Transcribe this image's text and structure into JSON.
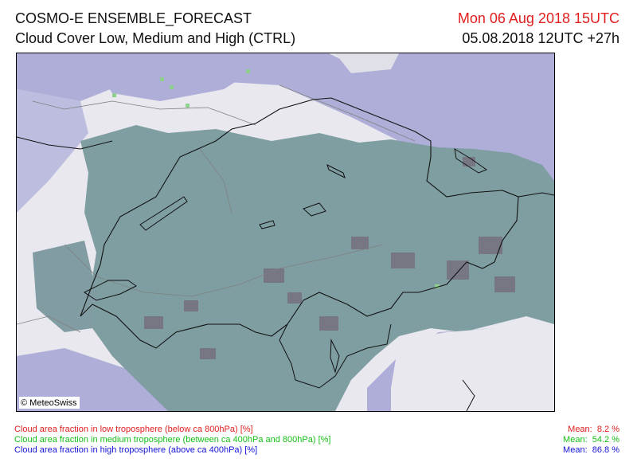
{
  "header": {
    "title": "COSMO-E ENSEMBLE_FORECAST",
    "subtitle": "Cloud Cover Low, Medium and High (CTRL)",
    "valid_time": "Mon 06 Aug 2018 15UTC",
    "init_time": "05.08.2018 12UTC +27h"
  },
  "map": {
    "copyright": "© MeteoSwiss",
    "colors": {
      "background": "#e8e8ee",
      "high_cloud": "#aeaed8",
      "dense_cloud": "#7f9ea2",
      "dark_patches": "#767782",
      "medium_cloud_specks": "#8fd08f",
      "borders": "#111111",
      "rivers": "#808080"
    }
  },
  "legend": [
    {
      "label": "Cloud area fraction in low troposphere (below ca 800hPa) [%]",
      "mean_label": "Mean:",
      "mean": "8.2 %",
      "color": "#e02020"
    },
    {
      "label": "Cloud area fraction in medium troposphere (between ca 400hPa and 800hPa) [%]",
      "mean_label": "Mean:",
      "mean": "54.2 %",
      "color": "#16c016"
    },
    {
      "label": "Cloud area fraction in high troposphere (above ca 400hPa) [%]",
      "mean_label": "Mean:",
      "mean": "86.8 %",
      "color": "#1414d8"
    }
  ]
}
